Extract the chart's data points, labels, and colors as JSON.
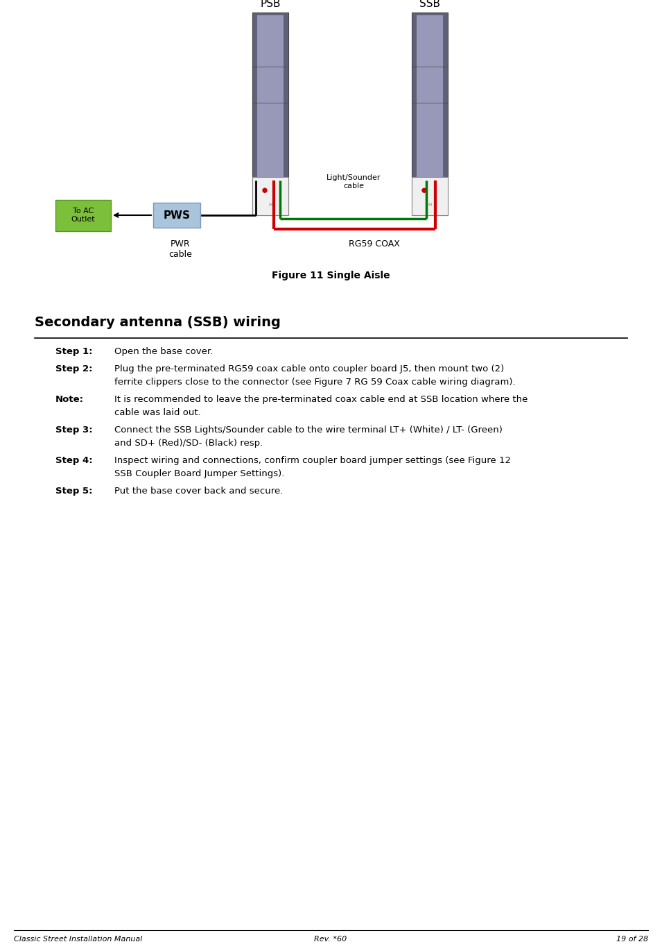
{
  "bg_color": "#ffffff",
  "fig_width": 9.55,
  "fig_height": 13.7,
  "footer_left": "Classic Street Installation Manual",
  "footer_center": "Rev. *60",
  "footer_right": "19 of 28",
  "figure_caption": "Figure 11 Single Aisle",
  "section_title": "Secondary antenna (SSB) wiring",
  "psb_label": "PSB",
  "ssb_label": "SSB",
  "pws_label": "PWS",
  "to_ac_label": "To AC\nOutlet",
  "pwr_cable_label": "PWR\ncable",
  "rg59_label": "RG59 COAX",
  "light_sounder_label": "Light/Sounder\ncable",
  "pole_color_dark": "#606078",
  "pole_color_mid": "#8888a8",
  "pole_color_light": "#9898b8",
  "pole_base_color": "#f0f0f0",
  "pws_box_color": "#aac4dc",
  "ac_box_color": "#7bbf3a",
  "red_wire_color": "#cc0000",
  "green_wire_color": "#007700",
  "black_wire_color": "#000000",
  "steps": [
    {
      "label": "Step 1",
      "text_normal": "Open the base cover.",
      "text_italic": "",
      "text_after": "",
      "lines": 1
    },
    {
      "label": "Step 2",
      "text_normal": "Plug the pre-terminated RG59 coax cable onto coupler board J5, then mount two (2)\nferrite clippers close to the connector (see ",
      "text_italic": "Figure 7 RG 59 Coax cable wiring diagram",
      "text_after": ").",
      "lines": 2
    },
    {
      "label": "Note",
      "text_normal": "It is recommended to leave the pre-terminated coax cable end at SSB location where the\ncable was laid out.",
      "text_italic": "",
      "text_after": "",
      "lines": 2
    },
    {
      "label": "Step 3",
      "text_normal": "Connect the SSB Lights/Sounder cable to the wire terminal LT+ (White) / LT- (Green)\nand SD+ (Red)/SD- (Black) resp.",
      "text_italic": "",
      "text_after": "",
      "lines": 2
    },
    {
      "label": "Step 4",
      "text_normal": "Inspect wiring and connections, confirm coupler board jumper settings (see ",
      "text_italic": "Figure 12\nSSB Coupler Board Jumper Settings",
      "text_after": ").",
      "lines": 2
    },
    {
      "label": "Step 5",
      "text_normal": "Put the base cover back and secure.",
      "text_italic": "",
      "text_after": "",
      "lines": 1
    }
  ]
}
